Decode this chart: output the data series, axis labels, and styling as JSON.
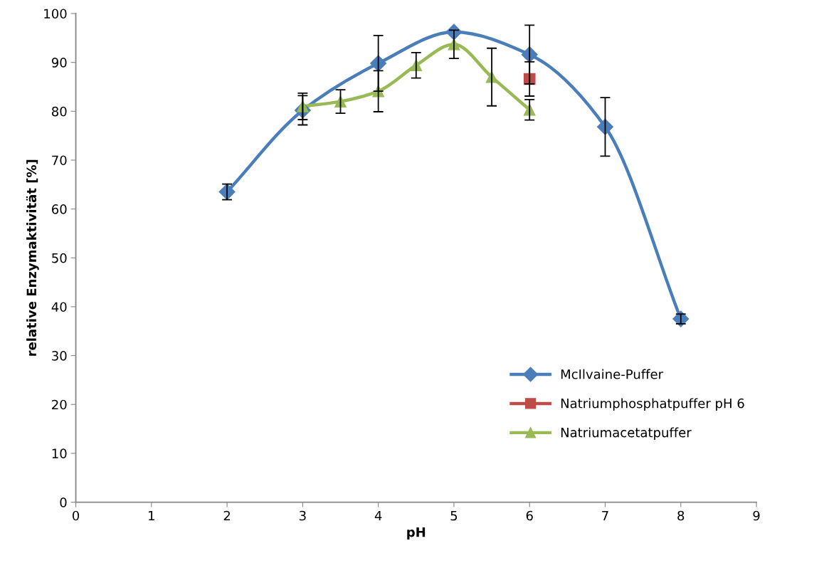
{
  "chart_data": {
    "type": "line",
    "xlabel": "pH",
    "ylabel": "relative Enzymaktivität [%]",
    "xlim": [
      0,
      9
    ],
    "xticks": [
      0,
      1,
      2,
      3,
      4,
      5,
      6,
      7,
      8,
      9
    ],
    "ylim": [
      0,
      100
    ],
    "yticks": [
      0,
      10,
      20,
      30,
      40,
      50,
      60,
      70,
      80,
      90,
      100
    ],
    "grid": false,
    "legend": "right",
    "series": [
      {
        "name": "McIlvaine-Puffer",
        "color": "#4a7ebb",
        "marker": "diamond",
        "x": [
          2,
          3,
          4,
          5,
          6,
          7,
          8
        ],
        "values": [
          63.5,
          80.2,
          89.8,
          96.2,
          91.6,
          76.8,
          37.5
        ],
        "errors": [
          1.6,
          3,
          5.7,
          null,
          6,
          6,
          1
        ]
      },
      {
        "name": "Natriumphosphatpuffer pH 6",
        "color": "#be4b48",
        "marker": "square",
        "x": [
          6
        ],
        "values": [
          86.6
        ],
        "errors": [
          3.5
        ]
      },
      {
        "name": "Natriumacetatpuffer",
        "color": "#98b954",
        "marker": "triangle",
        "x": [
          3,
          3.5,
          4,
          4.5,
          5,
          5.5,
          6
        ],
        "values": [
          81,
          82,
          84.1,
          89.4,
          93.7,
          87,
          80.3
        ],
        "errors": [
          2.7,
          2.4,
          4.2,
          2.6,
          2.9,
          5.9,
          2.1
        ]
      }
    ]
  }
}
